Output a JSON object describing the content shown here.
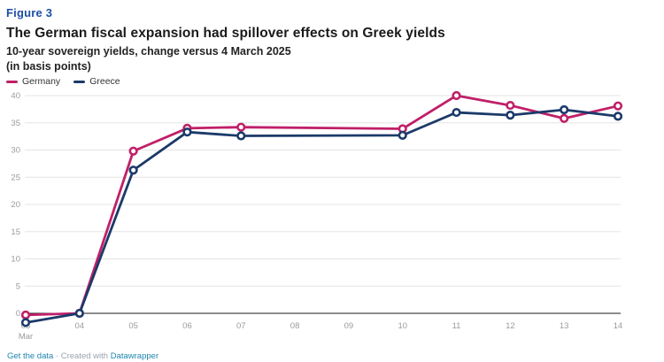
{
  "figure_label": "Figure 3",
  "title": "The German fiscal expansion had spillover effects on Greek yields",
  "subtitle": "10-year sovereign yields, change versus 4 March 2025",
  "unit_note": "(in basis points)",
  "legend": [
    {
      "label": "Germany",
      "color": "#c01f68"
    },
    {
      "label": "Greece",
      "color": "#1b3a69"
    }
  ],
  "footer": {
    "get_data_label": "Get the data",
    "created_with_label": "· Created with",
    "tool_label": "Datawrapper"
  },
  "colors": {
    "figure_label": "#1d4fa5",
    "link": "#1d86b0",
    "axis_label": "#9b9b9b",
    "grid": "#e4e4e4",
    "zero_line": "#1a1a1a",
    "germany": "#c01f68",
    "greece": "#1b3a69"
  },
  "chart_data": {
    "type": "line",
    "title": "The German fiscal expansion had spillover effects on Greek yields",
    "subtitle": "10-year sovereign yields, change versus 4 March 2025 (in basis points)",
    "categories": [
      "03",
      "04",
      "05",
      "06",
      "07",
      "08",
      "09",
      "10",
      "11",
      "12",
      "13",
      "14"
    ],
    "month_label": "Mar",
    "x_unit": "day of March 2025",
    "series": [
      {
        "name": "Germany",
        "color": "#c01f68",
        "values": [
          -0.3,
          0,
          29.8,
          34.0,
          34.2,
          null,
          null,
          33.9,
          40.0,
          38.2,
          35.8,
          38.1
        ]
      },
      {
        "name": "Greece",
        "color": "#1b3a69",
        "values": [
          -1.7,
          0,
          26.3,
          33.3,
          32.6,
          null,
          null,
          32.7,
          36.9,
          36.4,
          37.4,
          36.2
        ]
      }
    ],
    "yticks": [
      0,
      5,
      10,
      15,
      20,
      25,
      30,
      35,
      40
    ],
    "ylim": [
      -3,
      41
    ],
    "baseline": 0,
    "grid": "horizontal",
    "legend_position": "top-left",
    "markers": "open-circle",
    "weekend_gap_note": "no data points for 08 and 09; lines connect 07 to 10 directly"
  }
}
